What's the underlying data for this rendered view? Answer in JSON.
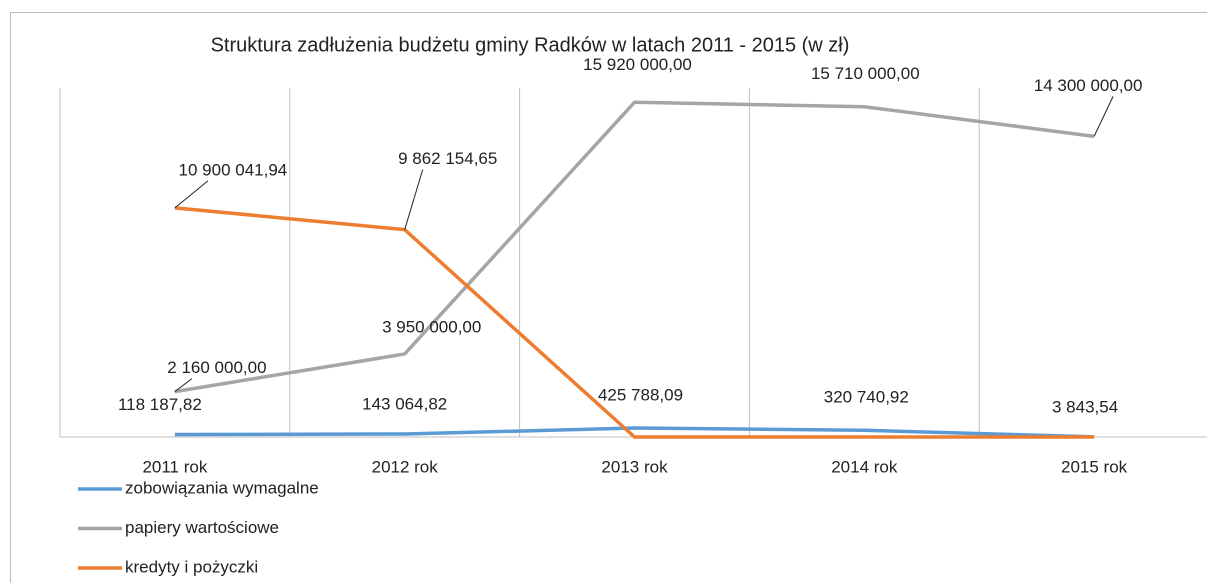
{
  "chart_data": {
    "type": "line",
    "title": "Struktura zadłużenia budżetu gminy Radków w latach 2011 - 2015 (w zł)",
    "categories": [
      "2011 rok",
      "2012 rok",
      "2013 rok",
      "2014 rok",
      "2015 rok"
    ],
    "ylim": [
      0,
      16600000
    ],
    "series": [
      {
        "name": "zobowiązania wymagalne",
        "color": "#5b9bd5",
        "values": [
          118187.82,
          143064.82,
          425788.09,
          320740.92,
          3843.54
        ],
        "value_labels": [
          "118 187,82",
          "143 064,82",
          "425 788,09",
          "320 740,92",
          "3 843,54"
        ]
      },
      {
        "name": "papiery wartościowe",
        "color": "#a5a5a5",
        "values": [
          2160000,
          3950000,
          15920000,
          15710000,
          14300000
        ],
        "value_labels": [
          "2 160 000,00",
          "3 950 000,00",
          "15 920 000,00",
          "15 710 000,00",
          "14 300 000,00"
        ]
      },
      {
        "name": "kredyty i pożyczki",
        "color": "#ed7d31",
        "values": [
          10900041.94,
          9862154.65,
          0,
          0,
          0
        ],
        "value_labels": [
          "10 900 041,94",
          "9 862 154,65",
          null,
          null,
          null
        ]
      }
    ]
  }
}
